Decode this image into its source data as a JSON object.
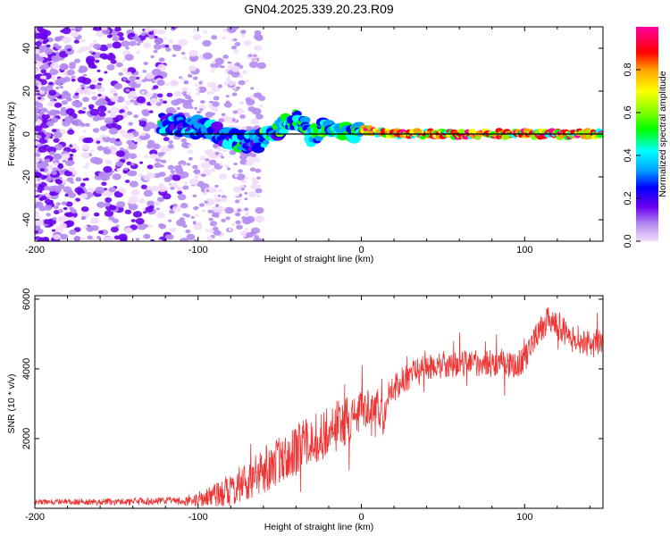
{
  "chart_data": [
    {
      "type": "heatmap",
      "title": "GN04.2025.339.20.23.R09",
      "xlabel": "Height of straight line (km)",
      "ylabel": "Frequency (Hz)",
      "xlim": [
        -200,
        148
      ],
      "ylim": [
        -50,
        50
      ],
      "xticks": [
        -200,
        -100,
        0,
        100
      ],
      "yticks": [
        -40,
        -20,
        0,
        20,
        40
      ],
      "xtick_labels": [
        "-200",
        "-100",
        "0",
        "100"
      ],
      "ytick_labels": [
        "-40",
        "-20",
        "0",
        "20",
        "40"
      ],
      "colorbar": {
        "label": "Normalized spectral amplitude",
        "range": [
          0,
          1
        ],
        "ticks": [
          0.0,
          0.2,
          0.4,
          0.6,
          0.8
        ],
        "tick_labels": [
          "0.0",
          "0.2",
          "0.4",
          "0.6",
          "0.8"
        ],
        "colormap": [
          "#f2ddfa",
          "#b58cf0",
          "#6a00f0",
          "#0000ff",
          "#00a0ff",
          "#00ffff",
          "#00ff00",
          "#80ff00",
          "#ffff00",
          "#ffa000",
          "#ff0000",
          "#ff00a0"
        ]
      },
      "ridge": {
        "x": [
          -120,
          -110,
          -100,
          -90,
          -80,
          -70,
          -60,
          -50,
          -45,
          -40,
          -35,
          -30,
          -25,
          -20,
          -15,
          -10,
          -5,
          0,
          10,
          20,
          40,
          60,
          80,
          100,
          120,
          148
        ],
        "y": [
          5,
          4,
          3,
          1,
          -2,
          -4,
          -3,
          2,
          6,
          7,
          4,
          -2,
          3,
          2,
          1,
          1,
          0,
          2,
          1,
          0,
          0,
          0,
          0,
          0,
          0,
          0
        ]
      },
      "line_freq": 0
    },
    {
      "type": "line",
      "xlabel": "Height of straight line (km)",
      "ylabel": "SNR (10 * v/v)",
      "xlim": [
        -200,
        148
      ],
      "ylim": [
        0,
        6100
      ],
      "xticks": [
        -200,
        -100,
        0,
        100
      ],
      "yticks": [
        2000,
        4000,
        6000
      ],
      "xtick_labels": [
        "-200",
        "-100",
        "0",
        "100"
      ],
      "ytick_labels": [
        "2000",
        "4000",
        "6000"
      ],
      "color": "#ee3333",
      "trend": {
        "x": [
          -200,
          -110,
          -100,
          -90,
          -80,
          -70,
          -60,
          -50,
          -40,
          -30,
          -20,
          -10,
          0,
          10,
          14,
          16,
          20,
          30,
          40,
          60,
          80,
          95,
          100,
          105,
          110,
          115,
          120,
          130,
          140,
          148
        ],
        "y": [
          180,
          200,
          250,
          350,
          550,
          800,
          1100,
          1400,
          1700,
          2000,
          2200,
          2500,
          2800,
          3000,
          2400,
          3400,
          3500,
          3800,
          4050,
          4150,
          4150,
          4100,
          4300,
          4700,
          5200,
          5400,
          5200,
          4900,
          4700,
          4800
        ]
      },
      "noise_amp": {
        "x": [
          -200,
          -110,
          -90,
          -70,
          -40,
          -10,
          10,
          40,
          100,
          148
        ],
        "y": [
          80,
          120,
          350,
          600,
          800,
          700,
          500,
          380,
          400,
          400
        ]
      }
    }
  ]
}
